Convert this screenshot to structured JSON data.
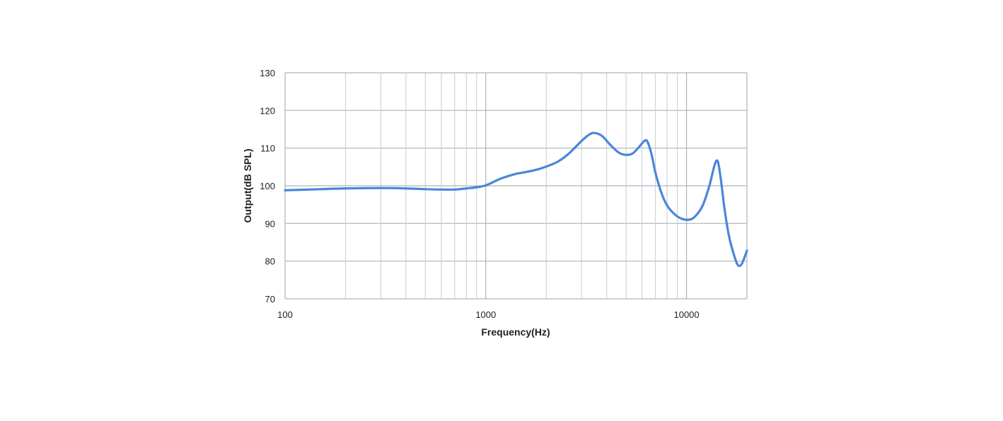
{
  "chart_data": {
    "type": "line",
    "title": "",
    "xlabel": "Frequency(Hz)",
    "ylabel": "Output(dB SPL)",
    "xscale": "log",
    "xlim": [
      100,
      20000
    ],
    "ylim": [
      70,
      130
    ],
    "x_ticks": [
      100,
      1000,
      10000
    ],
    "x_tick_labels": [
      "100",
      "1000",
      "10000"
    ],
    "y_ticks": [
      70,
      80,
      90,
      100,
      110,
      120,
      130
    ],
    "y_tick_labels": [
      "70",
      "80",
      "90",
      "100",
      "110",
      "120",
      "130"
    ],
    "grid": true,
    "legend": "none",
    "colors": {
      "series": "#4a86d8",
      "grid": "#c3ccd3",
      "gridMajor": "#aab4bc"
    },
    "series": [
      {
        "x": [
          100,
          150,
          200,
          300,
          400,
          500,
          600,
          700,
          800,
          900,
          1000,
          1100,
          1200,
          1400,
          1600,
          1800,
          2000,
          2300,
          2600,
          3000,
          3300,
          3500,
          3800,
          4200,
          4600,
          5000,
          5400,
          5800,
          6200,
          6400,
          6700,
          7000,
          7500,
          8000,
          8700,
          9500,
          10300,
          11000,
          12000,
          13000,
          13800,
          14300,
          14800,
          15500,
          16300,
          17200,
          18000,
          18700,
          19300,
          20000
        ],
        "y": [
          98.8,
          99.1,
          99.3,
          99.4,
          99.3,
          99.1,
          99.0,
          99.0,
          99.3,
          99.6,
          100.1,
          101.1,
          102.0,
          103.1,
          103.7,
          104.3,
          105.1,
          106.5,
          108.6,
          111.9,
          113.7,
          114.0,
          113.2,
          110.7,
          108.8,
          108.2,
          108.6,
          110.3,
          112.0,
          111.6,
          108.3,
          103.5,
          98.1,
          94.8,
          92.5,
          91.2,
          91.0,
          91.8,
          94.6,
          100.0,
          105.5,
          106.5,
          102.0,
          93.5,
          86.5,
          81.8,
          79.0,
          79.0,
          80.5,
          82.8
        ]
      }
    ]
  }
}
